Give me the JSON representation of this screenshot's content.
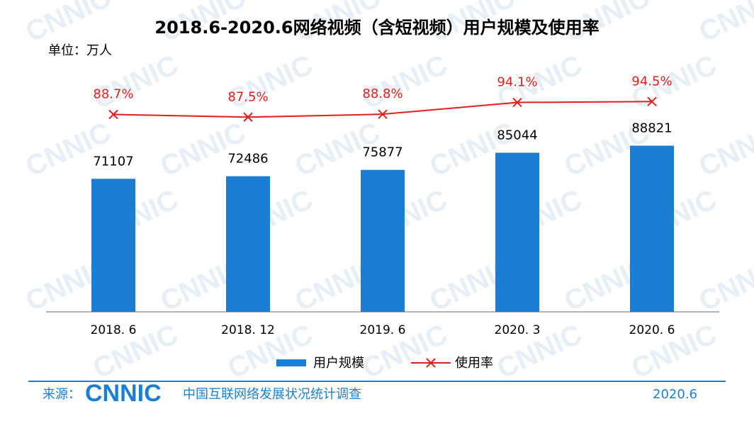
{
  "chart_data": {
    "type": "bar",
    "title": "2018.6-2020.6网络视频（含短视频）用户规模及使用率",
    "unit": "单位：万人",
    "watermark": "CNNIC",
    "categories": [
      "2018. 6",
      "2018. 12",
      "2019. 6",
      "2020. 3",
      "2020. 6"
    ],
    "ylim": [
      0,
      100000
    ],
    "y2lim": [
      0,
      100
    ],
    "series": [
      {
        "name": "用户规模",
        "type": "bar",
        "color": "#1a7fd4",
        "values": [
          71107,
          72486,
          75877,
          85044,
          88821
        ]
      },
      {
        "name": "使用率",
        "type": "line",
        "axis": "y2",
        "color": "#e0201e",
        "values": [
          88.7,
          87.5,
          88.8,
          94.1,
          94.5
        ],
        "value_labels": [
          "88.7%",
          "87.5%",
          "88.8%",
          "94.1%",
          "94.5%"
        ]
      }
    ],
    "source_label": "来源：",
    "source_org": "CNNIC",
    "source_name": "中国互联网络发展状况统计调查",
    "date": "2020.6"
  }
}
